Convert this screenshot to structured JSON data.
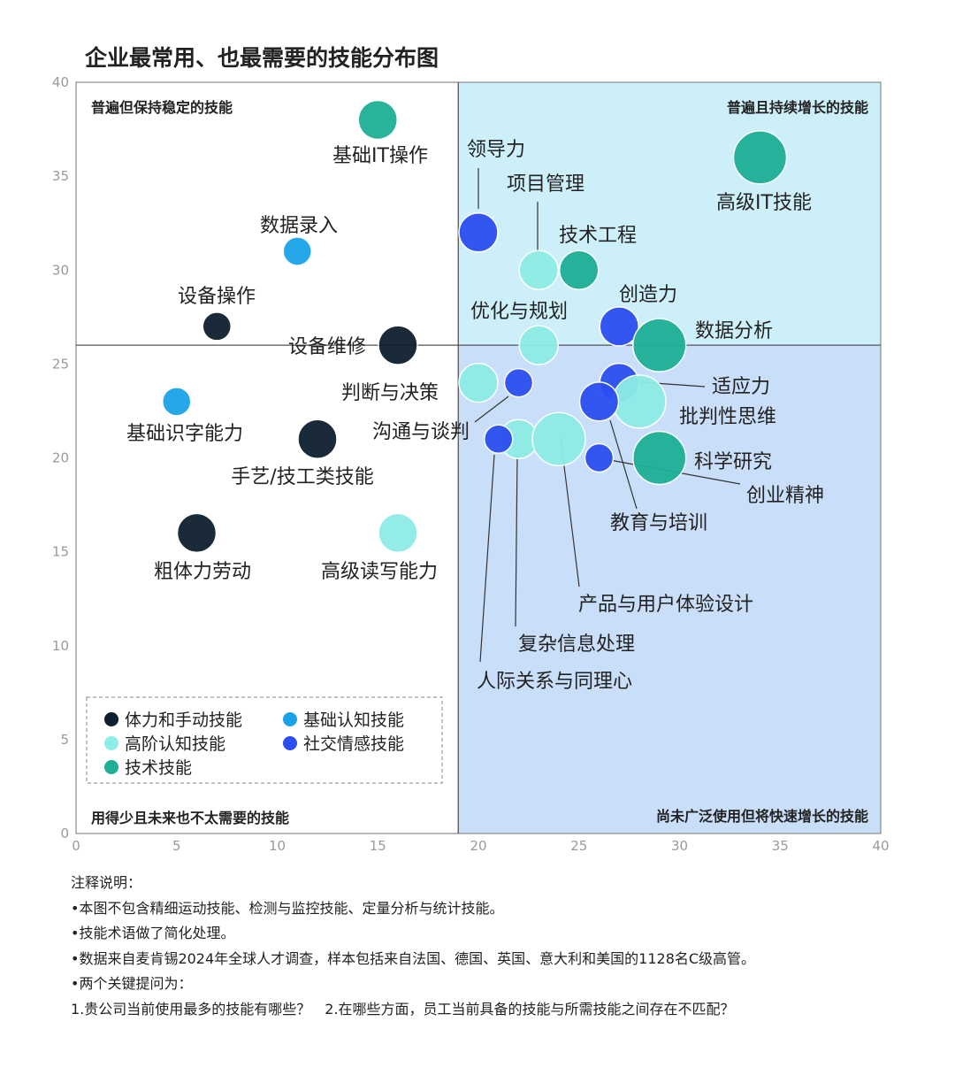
{
  "title": "企业最常用、也最需要的技能分布图",
  "chart_data": {
    "type": "scatter",
    "xlim": [
      0,
      40
    ],
    "ylim": [
      0,
      40
    ],
    "x_ticks": [
      "0",
      "5",
      "10",
      "15",
      "20",
      "25",
      "30",
      "35",
      "40"
    ],
    "y_ticks": [
      "0",
      "5",
      "10",
      "15",
      "20",
      "25",
      "30",
      "35",
      "40"
    ],
    "divider_x": 19,
    "divider_y": 26,
    "quadrants": {
      "top_left": "普遍但保持稳定的技能",
      "top_right": "普遍且持续增长的技能",
      "bottom_left": "用得少且未来也不太需要的技能",
      "bottom_right": "尚未广泛使用但将快速增长的技能"
    },
    "categories": [
      {
        "name": "体力和手动技能",
        "color": "#0f1f2e"
      },
      {
        "name": "基础认知技能",
        "color": "#1aa3e8"
      },
      {
        "name": "高阶认知技能",
        "color": "#8eece6"
      },
      {
        "name": "社交情感技能",
        "color": "#2b4ef0"
      },
      {
        "name": "技术技能",
        "color": "#1eaf95"
      }
    ],
    "points": [
      {
        "label": "基础IT操作",
        "category": "技术技能",
        "x": 15,
        "y": 38,
        "size": "m"
      },
      {
        "label": "高级IT技能",
        "category": "技术技能",
        "x": 34,
        "y": 36,
        "size": "l"
      },
      {
        "label": "领导力",
        "category": "社交情感技能",
        "x": 20,
        "y": 32,
        "size": "m"
      },
      {
        "label": "项目管理",
        "category": "高阶认知技能",
        "x": 23,
        "y": 30,
        "size": "m"
      },
      {
        "label": "技术工程",
        "category": "技术技能",
        "x": 25,
        "y": 30,
        "size": "m"
      },
      {
        "label": "数据录入",
        "category": "基础认知技能",
        "x": 11,
        "y": 31,
        "size": "s"
      },
      {
        "label": "设备操作",
        "category": "体力和手动技能",
        "x": 7,
        "y": 27,
        "size": "s"
      },
      {
        "label": "设备维修",
        "category": "体力和手动技能",
        "x": 16,
        "y": 26,
        "size": "m"
      },
      {
        "label": "创造力",
        "category": "社交情感技能",
        "x": 27,
        "y": 27,
        "size": "m"
      },
      {
        "label": "优化与规划",
        "category": "高阶认知技能",
        "x": 23,
        "y": 26,
        "size": "m"
      },
      {
        "label": "数据分析",
        "category": "技术技能",
        "x": 29,
        "y": 26,
        "size": "l"
      },
      {
        "label": "判断与决策",
        "category": "高阶认知技能",
        "x": 20,
        "y": 24,
        "size": "m"
      },
      {
        "label": "沟通与谈判",
        "category": "社交情感技能",
        "x": 22,
        "y": 24,
        "size": "s"
      },
      {
        "label": "适应力",
        "category": "社交情感技能",
        "x": 27,
        "y": 24,
        "size": "m"
      },
      {
        "label": "批判性思维",
        "category": "高阶认知技能",
        "x": 28,
        "y": 23,
        "size": "l"
      },
      {
        "label": "教育与培训",
        "category": "社交情感技能",
        "x": 26,
        "y": 23,
        "size": "m"
      },
      {
        "label": "基础识字能力",
        "category": "基础认知技能",
        "x": 5,
        "y": 23,
        "size": "s"
      },
      {
        "label": "手艺/技工类技能",
        "category": "体力和手动技能",
        "x": 12,
        "y": 21,
        "size": "m"
      },
      {
        "label": "复杂信息处理",
        "category": "高阶认知技能",
        "x": 22,
        "y": 21,
        "size": "m"
      },
      {
        "label": "产品与用户体验设计",
        "category": "高阶认知技能",
        "x": 24,
        "y": 21,
        "size": "l"
      },
      {
        "label": "人际关系与同理心",
        "category": "社交情感技能",
        "x": 21,
        "y": 21,
        "size": "s"
      },
      {
        "label": "创业精神",
        "category": "社交情感技能",
        "x": 26,
        "y": 20,
        "size": "s"
      },
      {
        "label": "科学研究",
        "category": "技术技能",
        "x": 29,
        "y": 20,
        "size": "l"
      },
      {
        "label": "粗体力劳动",
        "category": "体力和手动技能",
        "x": 6,
        "y": 16,
        "size": "m"
      },
      {
        "label": "高级读写能力",
        "category": "高阶认知技能",
        "x": 16,
        "y": 16,
        "size": "m"
      }
    ]
  },
  "notes": {
    "heading": "注释说明：",
    "lines": [
      "•本图不包含精细运动技能、检测与监控技能、定量分析与统计技能。",
      "•技能术语做了简化处理。",
      "•数据来自麦肯锡2024年全球人才调查，样本包括来自法国、德国、英国、意大利和美国的1128名C级高管。",
      "•两个关键提问为：",
      "1.贵公司当前使用最多的技能有哪些？　2.在哪些方面，员工当前具备的技能与所需技能之间存在不匹配？"
    ]
  }
}
